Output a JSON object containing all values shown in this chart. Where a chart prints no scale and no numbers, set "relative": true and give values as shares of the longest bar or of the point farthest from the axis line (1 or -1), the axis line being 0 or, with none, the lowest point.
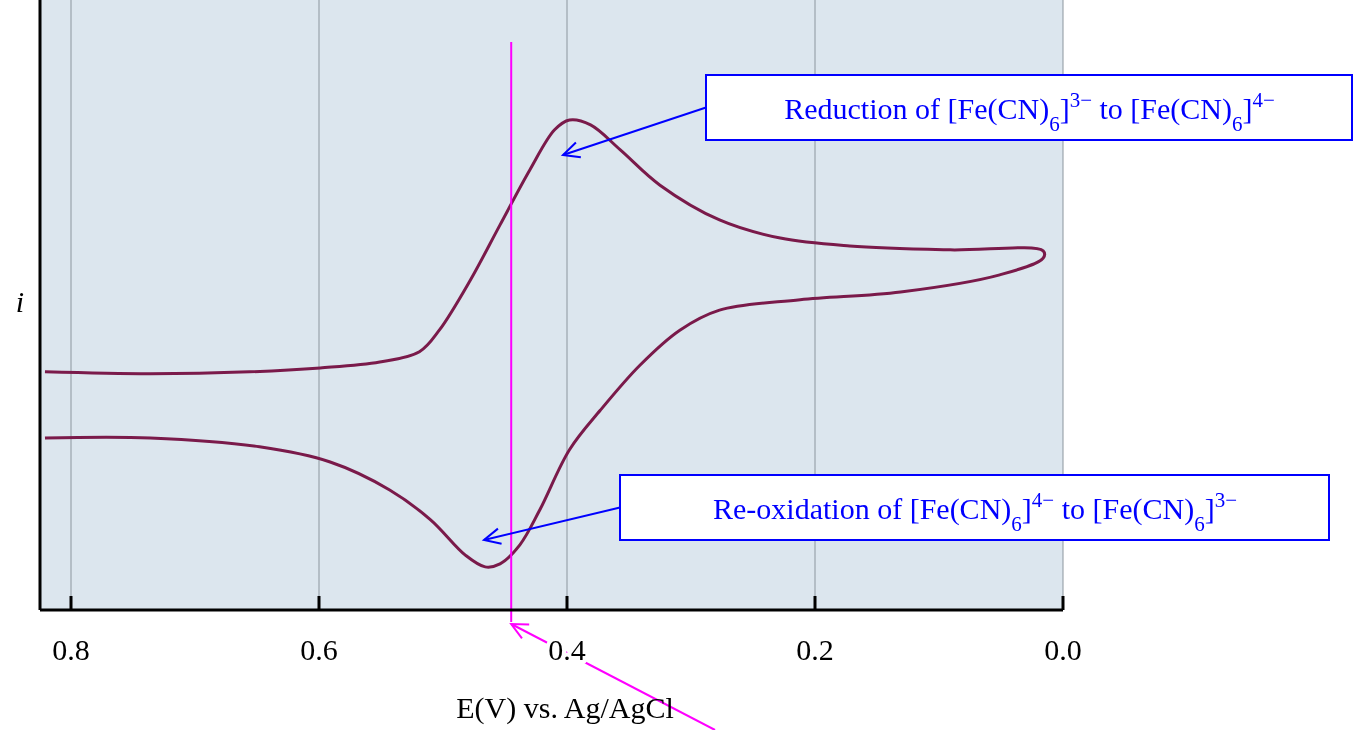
{
  "chart_data": {
    "type": "line",
    "relative": true,
    "xlabel": "E(V) vs. Ag/AgCl",
    "ylabel": "i",
    "xlim": [
      0.825,
      0
    ],
    "xticks": [
      0.8,
      0.6,
      0.4,
      0.2,
      {
        "value": 0,
        "label": "0.0"
      }
    ],
    "grid": "x",
    "series": [
      {
        "color": "#7a1a4a",
        "x": [
          0.821,
          0.736,
          0.656,
          0.599,
          0.551,
          0.519,
          0.503,
          0.478,
          0.454,
          0.43,
          0.41,
          0.398,
          0.381,
          0.357,
          0.325,
          0.277,
          0.228,
          0.172,
          0.091,
          0.016,
          0.016,
          0.051,
          0.131,
          0.212,
          0.277,
          0.309,
          0.341,
          0.373,
          0.398,
          0.422,
          0.438,
          0.454,
          0.466,
          0.482,
          0.51,
          0.543,
          0.591,
          0.648,
          0.736,
          0.821
        ],
        "values": [
          0.486,
          0.482,
          0.486,
          0.494,
          0.506,
          0.527,
          0.571,
          0.673,
          0.786,
          0.898,
          0.98,
          1,
          0.99,
          0.939,
          0.867,
          0.796,
          0.759,
          0.743,
          0.735,
          0.733,
          0.718,
          0.684,
          0.649,
          0.633,
          0.612,
          0.571,
          0.5,
          0.408,
          0.327,
          0.204,
          0.133,
          0.094,
          0.088,
          0.112,
          0.184,
          0.245,
          0.302,
          0.333,
          0.351,
          0.351
        ]
      }
    ],
    "ref_lines": [
      {
        "axis": "x",
        "value": 0.445,
        "color": "#ff00ff"
      }
    ],
    "annotations": [
      "Reduction of [Fe(CN)$_{6}$]$^{3−}$ to [Fe(CN)$_{6}$]$^{4−}$",
      "Re-oxidation of [Fe(CN)$_{6}$]$^{4−}$ to [Fe(CN)$_{6}$]$^{3−}$"
    ]
  }
}
